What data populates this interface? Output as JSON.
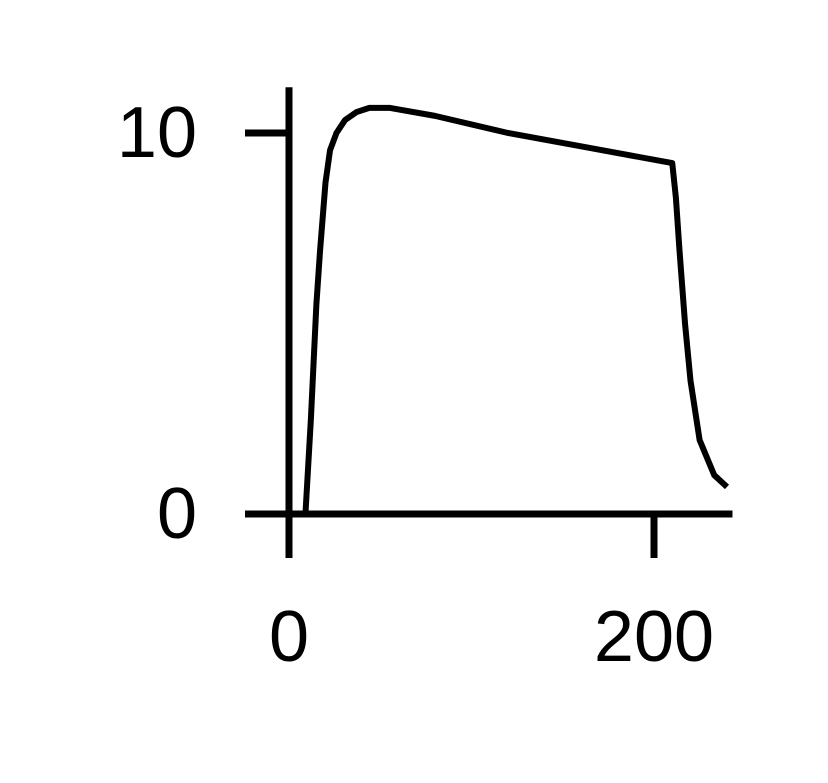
{
  "chart_data": {
    "type": "line",
    "x": [
      9,
      12,
      15,
      17,
      20,
      22.5,
      26,
      30.7,
      37,
      44,
      55,
      80,
      120,
      160,
      210,
      212,
      214,
      217,
      220,
      225,
      233,
      240
    ],
    "series": [
      {
        "color": "#000000",
        "values": [
          0,
          2.5,
          5.5,
          6.9,
          8.7,
          9.55,
          10.0,
          10.34,
          10.55,
          10.66,
          10.66,
          10.45,
          10.0,
          9.65,
          9.21,
          8.3,
          6.9,
          5.0,
          3.5,
          1.94,
          1.02,
          0.71
        ]
      }
    ],
    "xlim": [
      0,
      243
    ],
    "xticks": [
      0,
      200
    ],
    "ylim": [
      0,
      11.2
    ],
    "yticks": [
      0,
      10
    ],
    "grid": false
  }
}
